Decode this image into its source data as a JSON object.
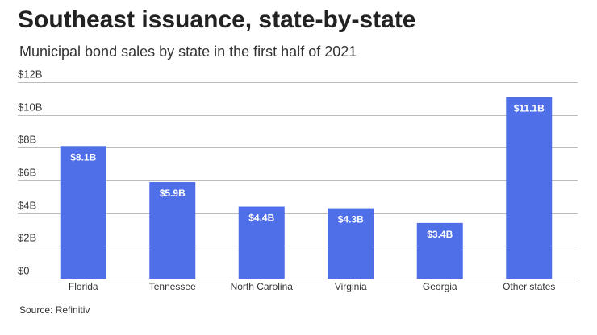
{
  "header": {
    "title": "Southeast issuance, state-by-state",
    "subtitle": "Municipal bond sales by state in the first half of 2021"
  },
  "footer": {
    "source": "Source: Refinitiv"
  },
  "colors": {
    "bar": "#4f6fe8",
    "grid": "#bbbbbb",
    "baseline": "#888888"
  },
  "chart_data": {
    "type": "bar",
    "title": "Southeast issuance, state-by-state",
    "subtitle": "Municipal bond sales by state in the first half of 2021",
    "xlabel": "",
    "ylabel": "",
    "ylim": [
      0,
      12
    ],
    "grid": true,
    "yticks": [
      0,
      2,
      4,
      6,
      8,
      10,
      12
    ],
    "ytick_labels": [
      "$0",
      "$2B",
      "$4B",
      "$6B",
      "$8B",
      "$10B",
      "$12B"
    ],
    "categories": [
      "Florida",
      "Tennessee",
      "North Carolina",
      "Virginia",
      "Georgia",
      "Other states"
    ],
    "values": [
      8.1,
      5.9,
      4.4,
      4.3,
      3.4,
      11.1
    ],
    "data_labels": [
      "$8.1B",
      "$5.9B",
      "$4.4B",
      "$4.3B",
      "$3.4B",
      "$11.1B"
    ]
  }
}
